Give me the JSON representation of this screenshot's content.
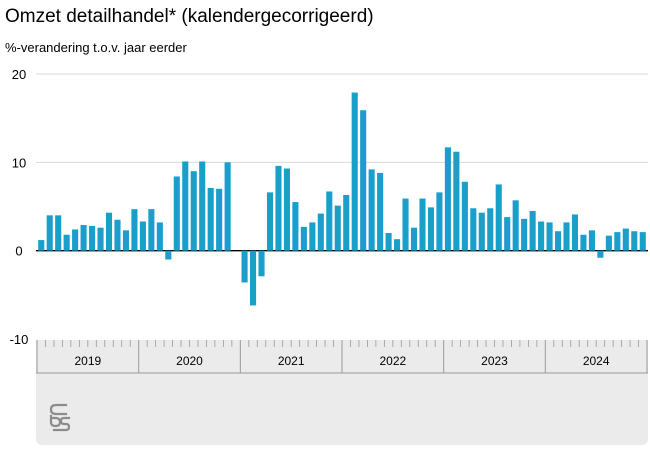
{
  "header": {
    "title": "Omzet detailhandel* (kalendergecorrigeerd)",
    "subtitle": "%-verandering t.o.v. jaar eerder"
  },
  "colors": {
    "bar": "#1a9fcb",
    "grid": "#d9d9d9",
    "zero": "#000000",
    "panel": "#ebebeb",
    "logo": "#8c8c8c"
  },
  "logo": {
    "icon": "cbs-logo",
    "text": "cbs"
  },
  "chart_data": {
    "type": "bar",
    "title": "Omzet detailhandel* (kalendergecorrigeerd)",
    "ylabel": "%-verandering t.o.v. jaar eerder",
    "xlabel": "",
    "ylim": [
      -10,
      20
    ],
    "yticks": [
      "20",
      "10",
      "0",
      "-10"
    ],
    "ytick_values": [
      20,
      10,
      0,
      -10
    ],
    "grid": true,
    "years": [
      "2019",
      "2020",
      "2021",
      "2022",
      "2023",
      "2024"
    ],
    "categories": [
      "2019-01",
      "2019-02",
      "2019-03",
      "2019-04",
      "2019-05",
      "2019-06",
      "2019-07",
      "2019-08",
      "2019-09",
      "2019-10",
      "2019-11",
      "2019-12",
      "2020-01",
      "2020-02",
      "2020-03",
      "2020-04",
      "2020-05",
      "2020-06",
      "2020-07",
      "2020-08",
      "2020-09",
      "2020-10",
      "2020-11",
      "2020-12",
      "2021-01",
      "2021-02",
      "2021-03",
      "2021-04",
      "2021-05",
      "2021-06",
      "2021-07",
      "2021-08",
      "2021-09",
      "2021-10",
      "2021-11",
      "2021-12",
      "2022-01",
      "2022-02",
      "2022-03",
      "2022-04",
      "2022-05",
      "2022-06",
      "2022-07",
      "2022-08",
      "2022-09",
      "2022-10",
      "2022-11",
      "2022-12",
      "2023-01",
      "2023-02",
      "2023-03",
      "2023-04",
      "2023-05",
      "2023-06",
      "2023-07",
      "2023-08",
      "2023-09",
      "2023-10",
      "2023-11",
      "2023-12",
      "2024-01",
      "2024-02",
      "2024-03",
      "2024-04",
      "2024-05",
      "2024-06",
      "2024-07",
      "2024-08",
      "2024-09",
      "2024-10",
      "2024-11",
      "2024-12"
    ],
    "values": [
      1.2,
      4.0,
      4.0,
      1.8,
      2.4,
      2.9,
      2.8,
      2.6,
      4.3,
      3.5,
      2.3,
      4.7,
      3.3,
      4.7,
      3.2,
      -1.0,
      8.4,
      10.1,
      9.0,
      10.1,
      7.1,
      7.0,
      10.0,
      0.0,
      -3.6,
      -6.2,
      -2.9,
      6.6,
      9.6,
      9.3,
      5.5,
      2.7,
      3.2,
      4.2,
      6.7,
      5.1,
      6.3,
      17.9,
      15.9,
      9.2,
      8.8,
      2.0,
      1.3,
      5.9,
      2.6,
      5.9,
      4.9,
      6.6,
      11.7,
      11.2,
      7.8,
      4.8,
      4.3,
      4.8,
      7.5,
      3.8,
      5.7,
      3.6,
      4.5,
      3.3,
      3.2,
      2.2,
      3.2,
      4.1,
      1.8,
      2.3,
      -0.8,
      1.7,
      2.1,
      2.5,
      2.2,
      2.1
    ]
  }
}
